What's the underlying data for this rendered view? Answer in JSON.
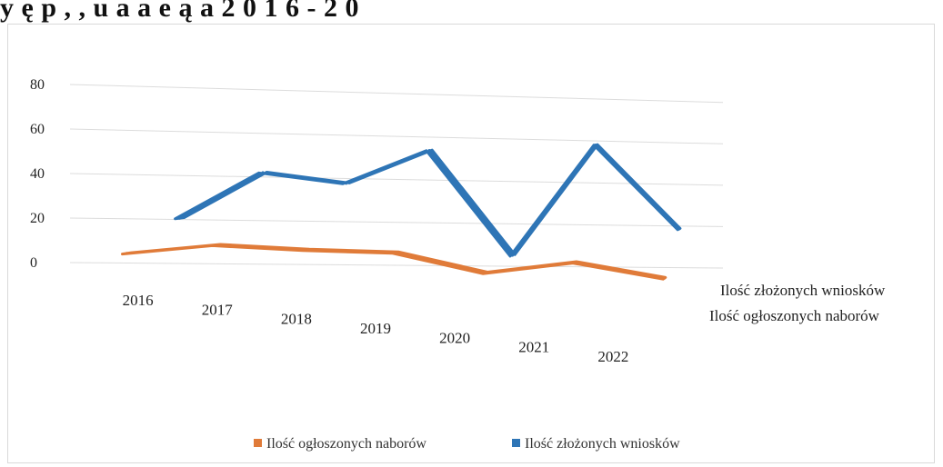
{
  "page": {
    "title": "y                      ę                         p          ,         ,     u    a     a    e    ą      a     2 0 1 6 - 2 0"
  },
  "chart_data": {
    "type": "line",
    "title": "",
    "categories": [
      "2016",
      "2017",
      "2018",
      "2019",
      "2020",
      "2021",
      "2022"
    ],
    "y_ticks": [
      0,
      20,
      40,
      60,
      80
    ],
    "ylim": [
      0,
      80
    ],
    "series": [
      {
        "name": "Ilość ogłoszonych naborów",
        "values": [
          4,
          9,
          8,
          8,
          0,
          6,
          0
        ],
        "color": "#e07b39"
      },
      {
        "name": "Ilość złożonych wniosków",
        "values": [
          17,
          40,
          36,
          53,
          4,
          58,
          19
        ],
        "color": "#2e75b6"
      }
    ],
    "depth_labels": [
      "Ilość złożonych wniosków",
      "Ilość ogłoszonych naborów"
    ],
    "legend": {
      "position": "bottom",
      "entries": [
        "Ilość ogłoszonych naborów",
        "Ilość złożonych wniosków"
      ]
    },
    "grid": true,
    "perspective": "3d"
  }
}
